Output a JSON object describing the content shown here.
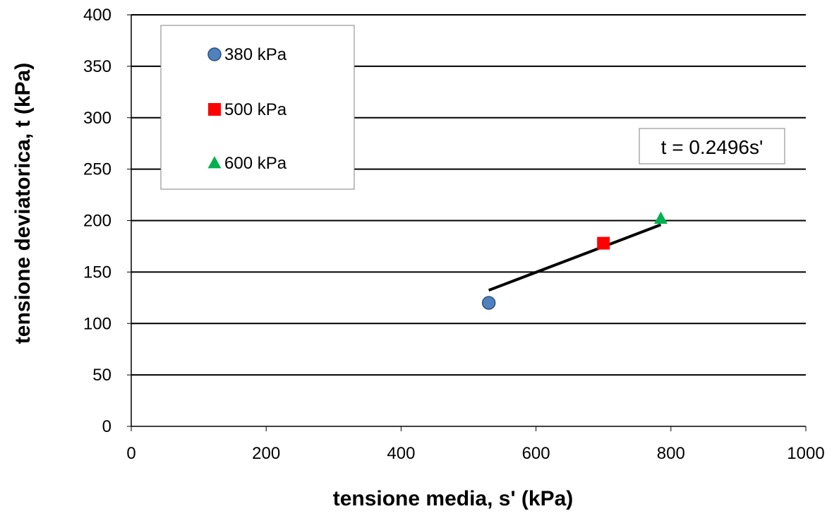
{
  "chart_data": {
    "type": "scatter",
    "xlabel": "tensione media, s' (kPa)",
    "ylabel": "tensione deviatorica, t (kPa)",
    "xlim": [
      0,
      1000
    ],
    "ylim": [
      0,
      400
    ],
    "x_ticks": [
      "0",
      "200",
      "400",
      "600",
      "800",
      "1000"
    ],
    "y_ticks": [
      "0",
      "50",
      "100",
      "150",
      "200",
      "250",
      "300",
      "350",
      "400"
    ],
    "grid": "horizontal",
    "legend_position": "top-left",
    "series": [
      {
        "name": "380 kPa",
        "marker": "circle",
        "color": "#4F81BD",
        "x": [
          530
        ],
        "y": [
          120
        ]
      },
      {
        "name": "500 kPa",
        "marker": "square",
        "color": "#FF0000",
        "x": [
          700
        ],
        "y": [
          178
        ]
      },
      {
        "name": "600 kPa",
        "marker": "triangle",
        "color": "#00B050",
        "x": [
          785
        ],
        "y": [
          202
        ]
      }
    ],
    "trendline": {
      "slope": 0.2496,
      "x_range": [
        530,
        785
      ],
      "label": "t = 0.2496s'"
    }
  }
}
